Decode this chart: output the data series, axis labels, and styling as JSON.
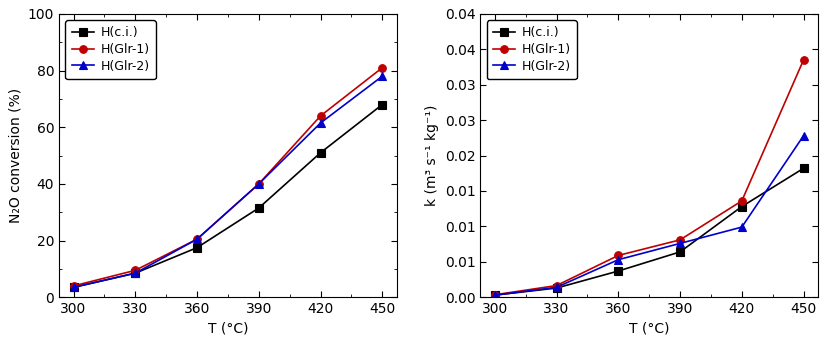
{
  "temperatures": [
    300,
    330,
    360,
    390,
    420,
    450
  ],
  "conv_hci": [
    3.5,
    8.5,
    17.5,
    31.5,
    51.0,
    68.0
  ],
  "conv_hglr1": [
    4.0,
    9.5,
    20.5,
    40.0,
    64.0,
    81.0
  ],
  "conv_hglr2": [
    3.5,
    8.5,
    20.5,
    40.0,
    61.5,
    78.0
  ],
  "k_hci": [
    0.0003,
    0.0013,
    0.0037,
    0.0064,
    0.0128,
    0.0182
  ],
  "k_hglr1": [
    0.00035,
    0.00165,
    0.0059,
    0.0081,
    0.0136,
    0.0335
  ],
  "k_hglr2": [
    0.0003,
    0.0014,
    0.0053,
    0.0076,
    0.0099,
    0.0228
  ],
  "legend_labels": [
    "H(c.i.)",
    "H(Glr-1)",
    "H(Glr-2)"
  ],
  "colors": [
    "#000000",
    "#c00000",
    "#0000cc"
  ],
  "markers": [
    "s",
    "o",
    "^"
  ],
  "ylabel_left": "N₂O conversion (%)",
  "ylabel_right": "k (m³ s⁻¹ kg⁻¹)",
  "xlabel": "T (°C)",
  "ylim_left": [
    0,
    100
  ],
  "ylim_right": [
    0,
    0.04
  ],
  "yticks_left": [
    0,
    20,
    40,
    60,
    80,
    100
  ],
  "yticks_right": [
    0.0,
    0.005,
    0.01,
    0.015,
    0.02,
    0.025,
    0.03,
    0.035,
    0.04
  ],
  "xticks": [
    300,
    330,
    360,
    390,
    420,
    450
  ],
  "xlim": [
    293,
    457
  ]
}
